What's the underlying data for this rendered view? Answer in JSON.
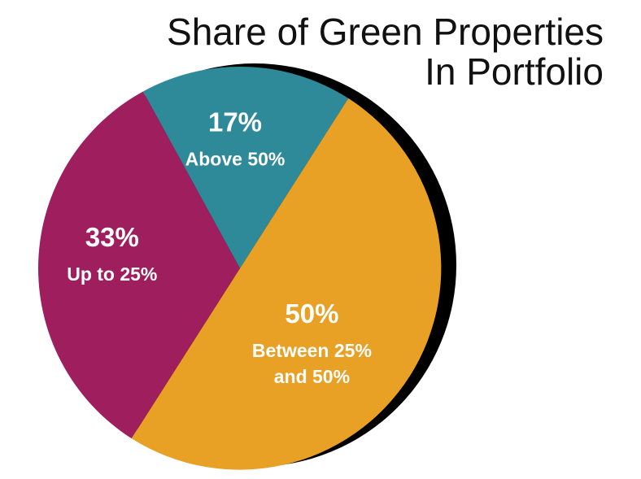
{
  "chart_data": {
    "type": "pie",
    "title_lines": [
      "Share of Green Properties",
      "In Portfolio"
    ],
    "slices": [
      {
        "label_lines": [
          "Up to 25%"
        ],
        "value": 33,
        "value_label": "33%",
        "color": "#9e1e5e"
      },
      {
        "label_lines": [
          "Above 50%"
        ],
        "value": 17,
        "value_label": "17%",
        "color": "#2e8a99"
      },
      {
        "label_lines": [
          "Between 25%",
          "and 50%"
        ],
        "value": 50,
        "value_label": "50%",
        "color": "#e8a025"
      }
    ],
    "shadow_color": "#000000"
  }
}
